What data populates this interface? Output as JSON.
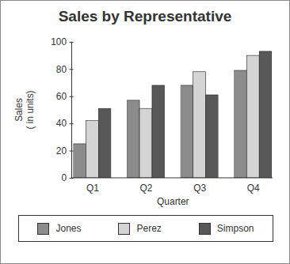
{
  "chart_data": {
    "type": "bar",
    "title": "Sales by Representative",
    "x_label": "Quarter",
    "y_label": "Sales\n( in units)",
    "categories": [
      "Q1",
      "Q2",
      "Q3",
      "Q4"
    ],
    "series": [
      {
        "name": "Jones",
        "color": "#8c8c8c",
        "values": [
          25,
          57,
          68,
          79
        ]
      },
      {
        "name": "Perez",
        "color": "#d4d4d4",
        "values": [
          42,
          51,
          78,
          90
        ]
      },
      {
        "name": "Simpson",
        "color": "#585858",
        "values": [
          51,
          68,
          61,
          93
        ]
      }
    ],
    "ylim": [
      0,
      100
    ],
    "yticks": [
      0,
      20,
      40,
      60,
      80,
      100
    ],
    "legend": "bottom",
    "grid": false
  }
}
